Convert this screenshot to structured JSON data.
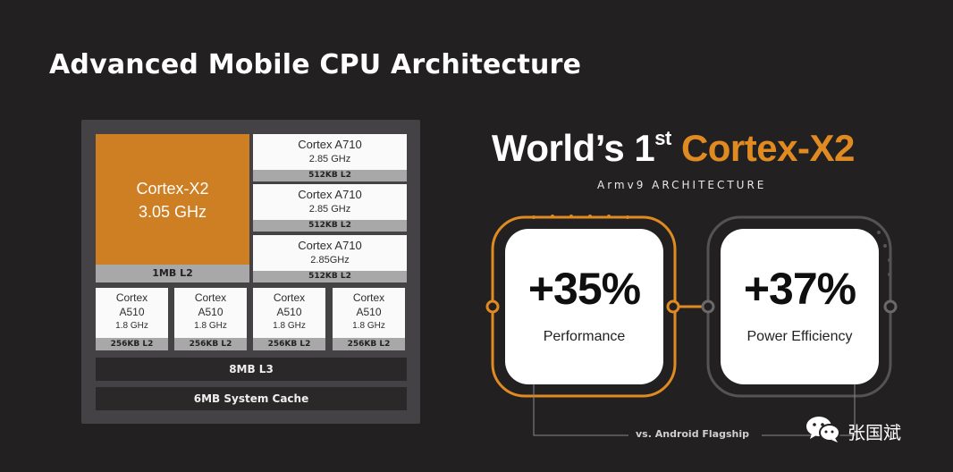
{
  "slide": {
    "title": "Advanced Mobile CPU Architecture"
  },
  "chip": {
    "x2": {
      "name": "Cortex-X2",
      "freq": "3.05 GHz",
      "l2": "1MB L2"
    },
    "a710": [
      {
        "name": "Cortex A710",
        "freq": "2.85 GHz",
        "l2": "512KB L2"
      },
      {
        "name": "Cortex A710",
        "freq": "2.85 GHz",
        "l2": "512KB L2"
      },
      {
        "name": "Cortex A710",
        "freq": "2.85GHz",
        "l2": "512KB L2"
      }
    ],
    "a510": [
      {
        "line1": "Cortex",
        "line2": "A510",
        "freq": "1.8 GHz",
        "l2": "256KB L2"
      },
      {
        "line1": "Cortex",
        "line2": "A510",
        "freq": "1.8 GHz",
        "l2": "256KB L2"
      },
      {
        "line1": "Cortex",
        "line2": "A510",
        "freq": "1.8 GHz",
        "l2": "256KB L2"
      },
      {
        "line1": "Cortex",
        "line2": "A510",
        "freq": "1.8 GHz",
        "l2": "256KB L2"
      }
    ],
    "l3": "8MB L3",
    "system_cache": "6MB System Cache"
  },
  "hero": {
    "prefix": "World’s 1",
    "superscript": "st",
    "highlight": "Cortex-X2",
    "subtitle": "Armv9 ARCHITECTURE"
  },
  "stats": [
    {
      "value": "+35%",
      "label": "Performance"
    },
    {
      "value": "+37%",
      "label": "Power Efficiency"
    }
  ],
  "footnote": "vs. Android Flagship",
  "watermark": {
    "text": "张国斌",
    "icon": "wechat-icon"
  },
  "colors": {
    "background": "#232021",
    "accent": "#ce7f23",
    "chip_frame": "#444244",
    "cache_label": "#a9a8a8"
  }
}
